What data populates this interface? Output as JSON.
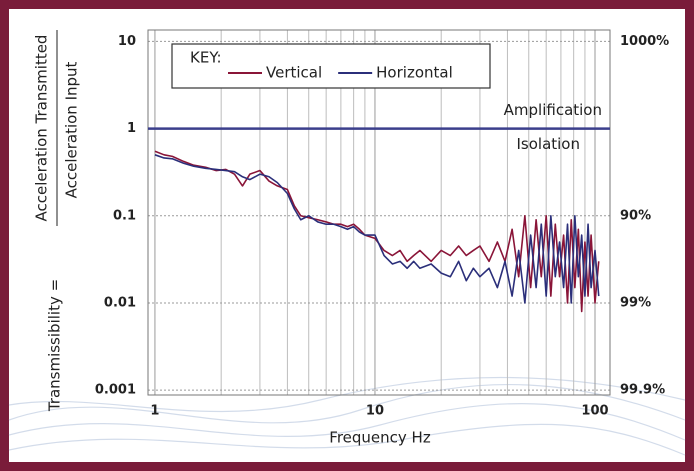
{
  "chart_data": {
    "type": "line",
    "xlabel": "Frequency Hz",
    "ylabel": "Transmissibility =",
    "ylabel_numerator": "Acceleration Transmitted",
    "ylabel_denominator": "Acceleration Input",
    "legend_title": "KEY:",
    "reference_line": 1,
    "reference_color": "#3b3f8c",
    "annotations": [
      "Amplification",
      "Isolation"
    ],
    "xlog": true,
    "ylog": true,
    "xlim": [
      0.93,
      117
    ],
    "ylim": [
      0.00088,
      13.5
    ],
    "xticks": [
      1,
      10,
      100
    ],
    "yticks": [
      10,
      1,
      0.1,
      0.01,
      0.001
    ],
    "y2lim": [
      0.00088,
      13.5
    ],
    "y2ticks": [
      {
        "value": 10,
        "label": "1000%"
      },
      {
        "value": 0.1,
        "label": "90%"
      },
      {
        "value": 0.01,
        "label": "99%"
      },
      {
        "value": 0.001,
        "label": "99.9%"
      }
    ],
    "x": [
      1,
      1.1,
      1.2,
      1.35,
      1.5,
      1.7,
      1.9,
      2.1,
      2.3,
      2.5,
      2.7,
      3,
      3.3,
      3.6,
      4,
      4.3,
      4.6,
      5,
      5.5,
      6,
      6.5,
      7,
      7.5,
      8,
      8.5,
      9,
      10,
      11,
      12,
      13,
      14,
      15,
      16,
      18,
      20,
      22,
      24,
      26,
      28,
      30,
      33,
      36,
      39,
      42,
      45,
      48,
      51,
      54,
      57,
      60,
      63,
      66,
      69,
      72,
      75,
      78,
      81,
      84,
      87,
      90,
      93,
      96,
      100,
      104
    ],
    "series": [
      {
        "name": "Vertical",
        "color": "#8a1538",
        "values": [
          0.55,
          0.5,
          0.48,
          0.42,
          0.38,
          0.36,
          0.33,
          0.34,
          0.3,
          0.22,
          0.3,
          0.33,
          0.25,
          0.22,
          0.2,
          0.13,
          0.1,
          0.095,
          0.09,
          0.085,
          0.08,
          0.08,
          0.075,
          0.08,
          0.07,
          0.06,
          0.055,
          0.04,
          0.035,
          0.04,
          0.03,
          0.035,
          0.04,
          0.03,
          0.04,
          0.035,
          0.045,
          0.035,
          0.04,
          0.045,
          0.03,
          0.05,
          0.03,
          0.07,
          0.02,
          0.1,
          0.015,
          0.09,
          0.02,
          0.1,
          0.012,
          0.08,
          0.02,
          0.06,
          0.01,
          0.09,
          0.015,
          0.07,
          0.008,
          0.05,
          0.012,
          0.06,
          0.01,
          0.03
        ]
      },
      {
        "name": "Horizontal",
        "color": "#2b2f7a",
        "values": [
          0.5,
          0.46,
          0.45,
          0.4,
          0.37,
          0.35,
          0.34,
          0.33,
          0.32,
          0.28,
          0.26,
          0.3,
          0.28,
          0.24,
          0.18,
          0.12,
          0.09,
          0.1,
          0.085,
          0.08,
          0.08,
          0.075,
          0.07,
          0.075,
          0.065,
          0.06,
          0.06,
          0.035,
          0.028,
          0.03,
          0.025,
          0.03,
          0.025,
          0.028,
          0.022,
          0.02,
          0.03,
          0.018,
          0.025,
          0.02,
          0.025,
          0.015,
          0.03,
          0.012,
          0.04,
          0.01,
          0.06,
          0.015,
          0.08,
          0.012,
          0.1,
          0.02,
          0.05,
          0.015,
          0.08,
          0.01,
          0.1,
          0.02,
          0.06,
          0.012,
          0.08,
          0.015,
          0.04,
          0.012
        ]
      }
    ]
  }
}
